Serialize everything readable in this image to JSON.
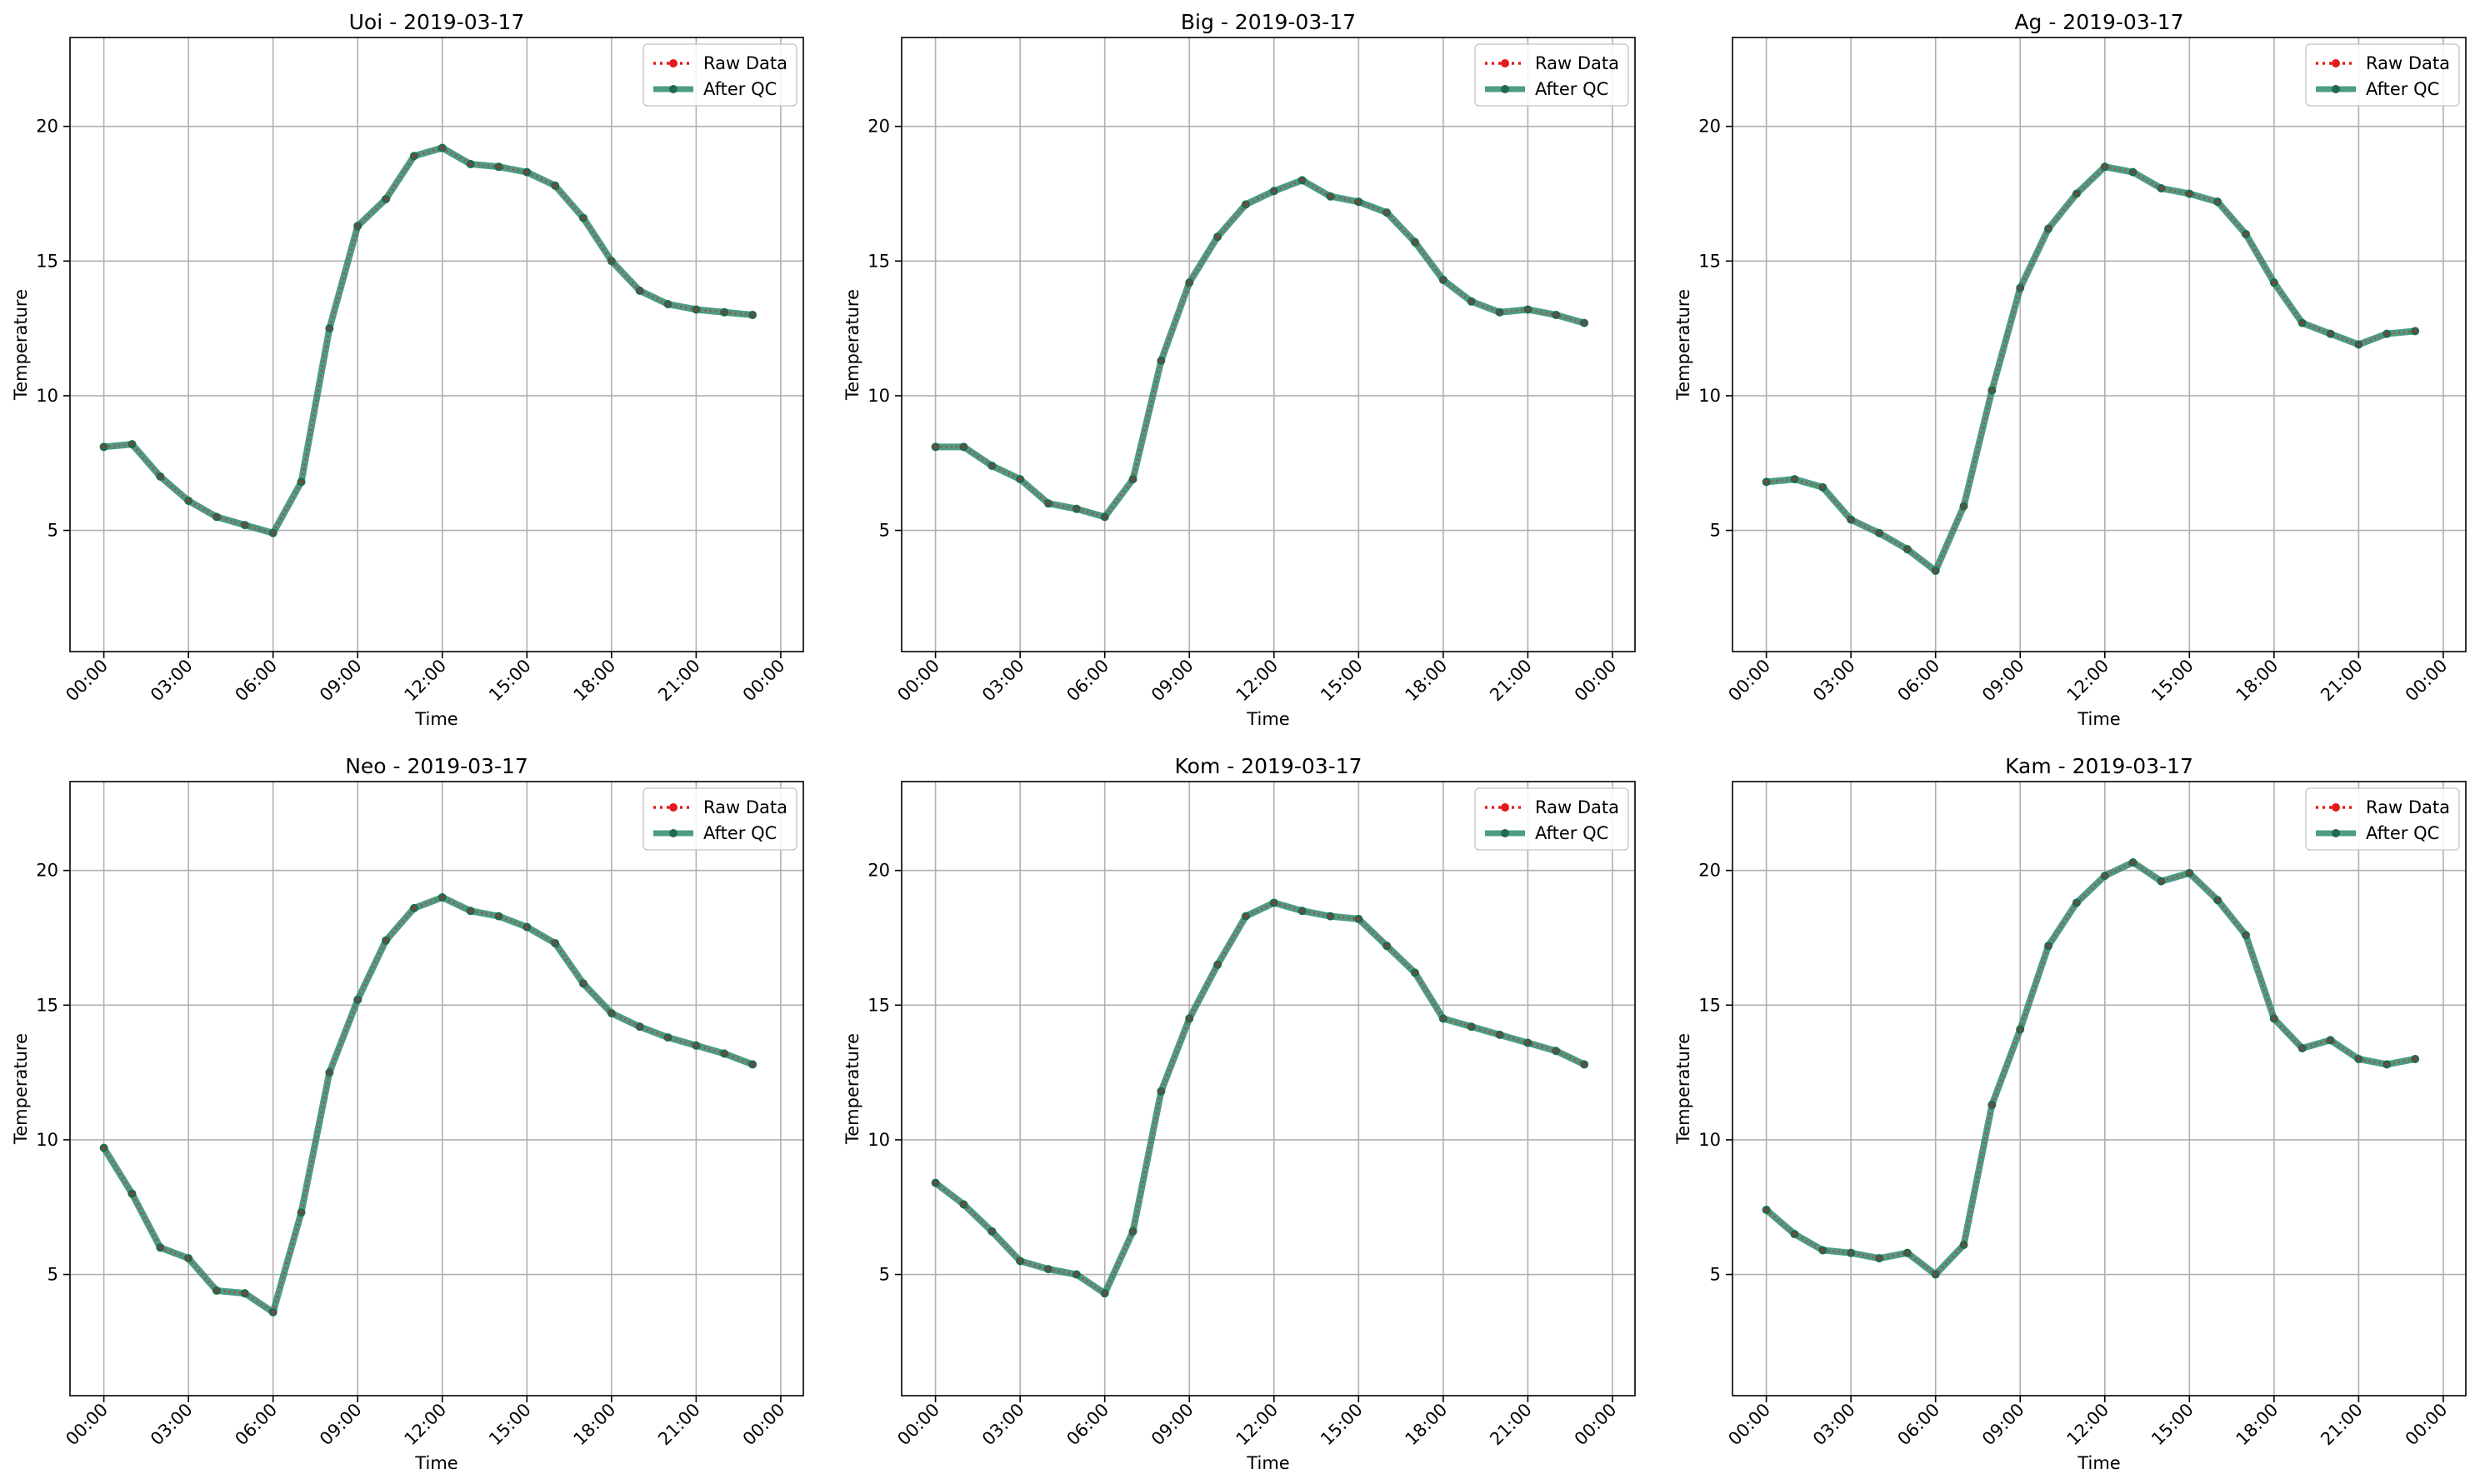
{
  "figure": {
    "xlabel": "Time",
    "ylabel": "Temperature",
    "x_tick_labels": [
      "00:00",
      "03:00",
      "06:00",
      "09:00",
      "12:00",
      "15:00",
      "18:00",
      "21:00",
      "00:00"
    ],
    "y_ticks": [
      5,
      10,
      15,
      20
    ],
    "legend": [
      "Raw Data",
      "After QC"
    ],
    "colors": {
      "raw": "#e41a1c",
      "qc": "#2e8b6e",
      "qc_marker": "#1f6b52",
      "grid": "#b0b0b0"
    }
  },
  "chart_data": [
    {
      "type": "line",
      "title": "Uoi - 2019-03-17",
      "xlabel": "Time",
      "ylabel": "Temperature",
      "x": [
        "00:00",
        "01:00",
        "02:00",
        "03:00",
        "04:00",
        "05:00",
        "06:00",
        "07:00",
        "08:00",
        "09:00",
        "10:00",
        "11:00",
        "12:00",
        "13:00",
        "14:00",
        "15:00",
        "16:00",
        "17:00",
        "18:00",
        "19:00",
        "20:00",
        "21:00",
        "22:00",
        "23:00"
      ],
      "xlim_hours": [
        -1.2,
        24.8
      ],
      "ylim": [
        0.5,
        23.3
      ],
      "legend_position": "upper right",
      "grid": true,
      "series": [
        {
          "name": "Raw Data",
          "style": "dotted red with markers",
          "values": [
            8.1,
            8.2,
            7.0,
            6.1,
            5.5,
            5.2,
            4.9,
            6.8,
            12.5,
            16.3,
            17.3,
            18.9,
            19.2,
            18.6,
            18.5,
            18.3,
            17.8,
            16.6,
            15.0,
            13.9,
            13.4,
            13.2,
            13.1,
            13.0
          ]
        },
        {
          "name": "After QC",
          "style": "solid green with markers",
          "values": [
            8.1,
            8.2,
            7.0,
            6.1,
            5.5,
            5.2,
            4.9,
            6.8,
            12.5,
            16.3,
            17.3,
            18.9,
            19.2,
            18.6,
            18.5,
            18.3,
            17.8,
            16.6,
            15.0,
            13.9,
            13.4,
            13.2,
            13.1,
            13.0
          ]
        }
      ]
    },
    {
      "type": "line",
      "title": "Big - 2019-03-17",
      "xlabel": "Time",
      "ylabel": "Temperature",
      "x": [
        "00:00",
        "01:00",
        "02:00",
        "03:00",
        "04:00",
        "05:00",
        "06:00",
        "07:00",
        "08:00",
        "09:00",
        "10:00",
        "11:00",
        "12:00",
        "13:00",
        "14:00",
        "15:00",
        "16:00",
        "17:00",
        "18:00",
        "19:00",
        "20:00",
        "21:00",
        "22:00",
        "23:00"
      ],
      "xlim_hours": [
        -1.2,
        24.8
      ],
      "ylim": [
        0.5,
        23.3
      ],
      "legend_position": "upper right",
      "grid": true,
      "series": [
        {
          "name": "Raw Data",
          "style": "dotted red with markers",
          "values": [
            8.1,
            8.1,
            7.4,
            6.9,
            6.0,
            5.8,
            5.5,
            6.9,
            11.3,
            14.2,
            15.9,
            17.1,
            17.6,
            18.0,
            17.4,
            17.2,
            16.8,
            15.7,
            14.3,
            13.5,
            13.1,
            13.2,
            13.0,
            12.7
          ]
        },
        {
          "name": "After QC",
          "style": "solid green with markers",
          "values": [
            8.1,
            8.1,
            7.4,
            6.9,
            6.0,
            5.8,
            5.5,
            6.9,
            11.3,
            14.2,
            15.9,
            17.1,
            17.6,
            18.0,
            17.4,
            17.2,
            16.8,
            15.7,
            14.3,
            13.5,
            13.1,
            13.2,
            13.0,
            12.7
          ]
        }
      ]
    },
    {
      "type": "line",
      "title": "Ag - 2019-03-17",
      "xlabel": "Time",
      "ylabel": "Temperature",
      "x": [
        "00:00",
        "01:00",
        "02:00",
        "03:00",
        "04:00",
        "05:00",
        "06:00",
        "07:00",
        "08:00",
        "09:00",
        "10:00",
        "11:00",
        "12:00",
        "13:00",
        "14:00",
        "15:00",
        "16:00",
        "17:00",
        "18:00",
        "19:00",
        "20:00",
        "21:00",
        "22:00",
        "23:00"
      ],
      "xlim_hours": [
        -1.2,
        24.8
      ],
      "ylim": [
        0.5,
        23.3
      ],
      "legend_position": "upper right",
      "grid": true,
      "series": [
        {
          "name": "Raw Data",
          "style": "dotted red with markers",
          "values": [
            6.8,
            6.9,
            6.6,
            5.4,
            4.9,
            4.3,
            3.5,
            5.9,
            10.2,
            14.0,
            16.2,
            17.5,
            18.5,
            18.3,
            17.7,
            17.5,
            17.2,
            16.0,
            14.2,
            12.7,
            12.3,
            11.9,
            12.3,
            12.4
          ]
        },
        {
          "name": "After QC",
          "style": "solid green with markers",
          "values": [
            6.8,
            6.9,
            6.6,
            5.4,
            4.9,
            4.3,
            3.5,
            5.9,
            10.2,
            14.0,
            16.2,
            17.5,
            18.5,
            18.3,
            17.7,
            17.5,
            17.2,
            16.0,
            14.2,
            12.7,
            12.3,
            11.9,
            12.3,
            12.4
          ]
        }
      ]
    },
    {
      "type": "line",
      "title": "Neo - 2019-03-17",
      "xlabel": "Time",
      "ylabel": "Temperature",
      "x": [
        "00:00",
        "01:00",
        "02:00",
        "03:00",
        "04:00",
        "05:00",
        "06:00",
        "07:00",
        "08:00",
        "09:00",
        "10:00",
        "11:00",
        "12:00",
        "13:00",
        "14:00",
        "15:00",
        "16:00",
        "17:00",
        "18:00",
        "19:00",
        "20:00",
        "21:00",
        "22:00",
        "23:00"
      ],
      "xlim_hours": [
        -1.2,
        24.8
      ],
      "ylim": [
        0.5,
        23.3
      ],
      "legend_position": "upper right",
      "grid": true,
      "series": [
        {
          "name": "Raw Data",
          "style": "dotted red with markers",
          "values": [
            9.7,
            8.0,
            6.0,
            5.6,
            4.4,
            4.3,
            3.6,
            7.3,
            12.5,
            15.2,
            17.4,
            18.6,
            19.0,
            18.5,
            18.3,
            17.9,
            17.3,
            15.8,
            14.7,
            14.2,
            13.8,
            13.5,
            13.2,
            12.8
          ]
        },
        {
          "name": "After QC",
          "style": "solid green with markers",
          "values": [
            9.7,
            8.0,
            6.0,
            5.6,
            4.4,
            4.3,
            3.6,
            7.3,
            12.5,
            15.2,
            17.4,
            18.6,
            19.0,
            18.5,
            18.3,
            17.9,
            17.3,
            15.8,
            14.7,
            14.2,
            13.8,
            13.5,
            13.2,
            12.8
          ]
        }
      ]
    },
    {
      "type": "line",
      "title": "Kom - 2019-03-17",
      "xlabel": "Time",
      "ylabel": "Temperature",
      "x": [
        "00:00",
        "01:00",
        "02:00",
        "03:00",
        "04:00",
        "05:00",
        "06:00",
        "07:00",
        "08:00",
        "09:00",
        "10:00",
        "11:00",
        "12:00",
        "13:00",
        "14:00",
        "15:00",
        "16:00",
        "17:00",
        "18:00",
        "19:00",
        "20:00",
        "21:00",
        "22:00",
        "23:00"
      ],
      "xlim_hours": [
        -1.2,
        24.8
      ],
      "ylim": [
        0.5,
        23.3
      ],
      "legend_position": "upper right",
      "grid": true,
      "series": [
        {
          "name": "Raw Data",
          "style": "dotted red with markers",
          "values": [
            8.4,
            7.6,
            6.6,
            5.5,
            5.2,
            5.0,
            4.3,
            6.6,
            11.8,
            14.5,
            16.5,
            18.3,
            18.8,
            18.5,
            18.3,
            18.2,
            17.2,
            16.2,
            14.5,
            14.2,
            13.9,
            13.6,
            13.3,
            12.8
          ]
        },
        {
          "name": "After QC",
          "style": "solid green with markers",
          "values": [
            8.4,
            7.6,
            6.6,
            5.5,
            5.2,
            5.0,
            4.3,
            6.6,
            11.8,
            14.5,
            16.5,
            18.3,
            18.8,
            18.5,
            18.3,
            18.2,
            17.2,
            16.2,
            14.5,
            14.2,
            13.9,
            13.6,
            13.3,
            12.8
          ]
        }
      ]
    },
    {
      "type": "line",
      "title": "Kam - 2019-03-17",
      "xlabel": "Time",
      "ylabel": "Temperature",
      "x": [
        "00:00",
        "01:00",
        "02:00",
        "03:00",
        "04:00",
        "05:00",
        "06:00",
        "07:00",
        "08:00",
        "09:00",
        "10:00",
        "11:00",
        "12:00",
        "13:00",
        "14:00",
        "15:00",
        "16:00",
        "17:00",
        "18:00",
        "19:00",
        "20:00",
        "21:00",
        "22:00",
        "23:00"
      ],
      "xlim_hours": [
        -1.2,
        24.8
      ],
      "ylim": [
        0.5,
        23.3
      ],
      "legend_position": "upper right",
      "grid": true,
      "series": [
        {
          "name": "Raw Data",
          "style": "dotted red with markers",
          "values": [
            7.4,
            6.5,
            5.9,
            5.8,
            5.6,
            5.8,
            5.0,
            6.1,
            11.3,
            14.1,
            17.2,
            18.8,
            19.8,
            20.3,
            19.6,
            19.9,
            18.9,
            17.6,
            14.5,
            13.4,
            13.7,
            13.0,
            12.8,
            13.0
          ]
        },
        {
          "name": "After QC",
          "style": "solid green with markers",
          "values": [
            7.4,
            6.5,
            5.9,
            5.8,
            5.6,
            5.8,
            5.0,
            6.1,
            11.3,
            14.1,
            17.2,
            18.8,
            19.8,
            20.3,
            19.6,
            19.9,
            18.9,
            17.6,
            14.5,
            13.4,
            13.7,
            13.0,
            12.8,
            13.0
          ]
        }
      ]
    }
  ]
}
